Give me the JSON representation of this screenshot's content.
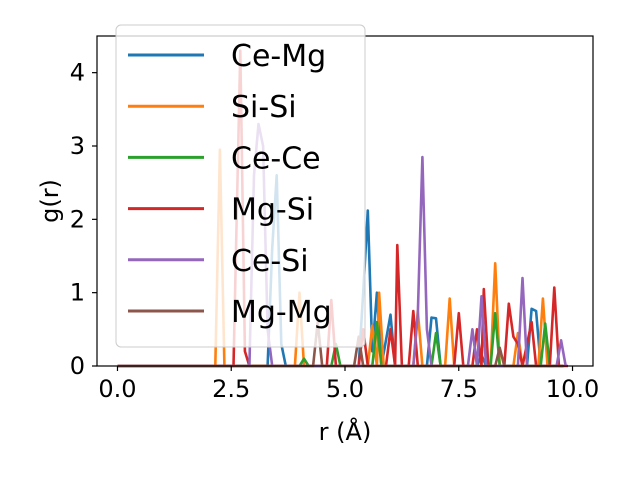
{
  "chart_data": {
    "type": "line",
    "xlabel": "r (Å)",
    "ylabel": "g(r)",
    "xlim": [
      -0.45,
      10.45
    ],
    "ylim": [
      0,
      4.5
    ],
    "xticks": [
      0.0,
      2.5,
      5.0,
      7.5,
      10.0
    ],
    "xtick_labels": [
      "0.0",
      "2.5",
      "5.0",
      "7.5",
      "10.0"
    ],
    "yticks": [
      0,
      1,
      2,
      3,
      4
    ],
    "ytick_labels": [
      "0",
      "1",
      "2",
      "3",
      "4"
    ],
    "grid": false,
    "legend_position": "upper-left",
    "series": [
      {
        "name": "Ce-Mg",
        "color": "#1f77b4",
        "points": [
          [
            0,
            0
          ],
          [
            3.3,
            0
          ],
          [
            3.4,
            1.6
          ],
          [
            3.5,
            2.6
          ],
          [
            3.6,
            0.3
          ],
          [
            3.7,
            0
          ],
          [
            5.3,
            0
          ],
          [
            5.4,
            1.0
          ],
          [
            5.5,
            2.12
          ],
          [
            5.6,
            0.2
          ],
          [
            5.7,
            1.0
          ],
          [
            5.8,
            0
          ],
          [
            6.0,
            0.7
          ],
          [
            6.1,
            0
          ],
          [
            6.8,
            0
          ],
          [
            6.9,
            0.66
          ],
          [
            7.0,
            0.65
          ],
          [
            7.1,
            0
          ],
          [
            7.9,
            0
          ],
          [
            8.0,
            0.15
          ],
          [
            8.1,
            0
          ],
          [
            9.0,
            0
          ],
          [
            9.1,
            0.78
          ],
          [
            9.2,
            0.75
          ],
          [
            9.3,
            0
          ],
          [
            9.6,
            0
          ]
        ]
      },
      {
        "name": "Si-Si",
        "color": "#ff7f0e",
        "points": [
          [
            0,
            0
          ],
          [
            2.15,
            0
          ],
          [
            2.25,
            2.95
          ],
          [
            2.35,
            0
          ],
          [
            3.9,
            0
          ],
          [
            4.0,
            1.0
          ],
          [
            4.1,
            0
          ],
          [
            5.5,
            0
          ],
          [
            5.6,
            0.55
          ],
          [
            5.7,
            0
          ],
          [
            5.75,
            1.0
          ],
          [
            5.85,
            0
          ],
          [
            6.5,
            0
          ],
          [
            6.6,
            0.75
          ],
          [
            6.7,
            0
          ],
          [
            7.2,
            0
          ],
          [
            7.3,
            0.92
          ],
          [
            7.4,
            0
          ],
          [
            8.2,
            0
          ],
          [
            8.3,
            1.4
          ],
          [
            8.4,
            0
          ],
          [
            8.7,
            0
          ],
          [
            8.8,
            0.45
          ],
          [
            8.9,
            0
          ],
          [
            9.25,
            0
          ],
          [
            9.35,
            0.92
          ],
          [
            9.45,
            0
          ],
          [
            9.8,
            0
          ]
        ]
      },
      {
        "name": "Ce-Ce",
        "color": "#2ca02c",
        "points": [
          [
            0,
            0
          ],
          [
            4.0,
            0
          ],
          [
            4.1,
            0.1
          ],
          [
            4.2,
            0
          ],
          [
            4.7,
            0
          ],
          [
            4.8,
            0.3
          ],
          [
            4.9,
            0
          ],
          [
            5.6,
            0
          ],
          [
            5.7,
            0.6
          ],
          [
            5.8,
            0
          ],
          [
            6.9,
            0
          ],
          [
            7.0,
            0.45
          ],
          [
            7.1,
            0
          ],
          [
            8.2,
            0
          ],
          [
            8.3,
            0.72
          ],
          [
            8.4,
            0
          ],
          [
            9.3,
            0
          ],
          [
            9.4,
            0.58
          ],
          [
            9.5,
            0
          ],
          [
            9.8,
            0
          ]
        ]
      },
      {
        "name": "Mg-Si",
        "color": "#d62728",
        "points": [
          [
            0,
            0
          ],
          [
            2.55,
            0
          ],
          [
            2.7,
            4.3
          ],
          [
            2.8,
            0.2
          ],
          [
            2.9,
            0
          ],
          [
            4.6,
            0
          ],
          [
            4.7,
            0.9
          ],
          [
            4.8,
            0
          ],
          [
            5.3,
            0
          ],
          [
            5.4,
            0.5
          ],
          [
            5.5,
            0
          ],
          [
            5.9,
            0
          ],
          [
            6.0,
            0.5
          ],
          [
            6.1,
            0
          ],
          [
            6.15,
            1.65
          ],
          [
            6.25,
            0
          ],
          [
            6.4,
            0
          ],
          [
            6.5,
            0.75
          ],
          [
            6.6,
            0
          ],
          [
            7.4,
            0
          ],
          [
            7.5,
            0.72
          ],
          [
            7.6,
            0
          ],
          [
            7.8,
            0
          ],
          [
            7.9,
            0.5
          ],
          [
            8.0,
            0
          ],
          [
            8.05,
            1.05
          ],
          [
            8.15,
            0
          ],
          [
            8.5,
            0
          ],
          [
            8.6,
            0.85
          ],
          [
            8.7,
            0.4
          ],
          [
            8.8,
            0.3
          ],
          [
            8.9,
            0
          ],
          [
            9.1,
            0.6
          ],
          [
            9.2,
            0
          ],
          [
            9.5,
            0
          ],
          [
            9.6,
            1.07
          ],
          [
            9.7,
            0
          ],
          [
            9.9,
            0
          ]
        ]
      },
      {
        "name": "Ce-Si",
        "color": "#9467bd",
        "points": [
          [
            0,
            0
          ],
          [
            2.9,
            0
          ],
          [
            3.0,
            2.6
          ],
          [
            3.1,
            3.3
          ],
          [
            3.2,
            3.0
          ],
          [
            3.3,
            0.5
          ],
          [
            3.4,
            0
          ],
          [
            6.5,
            0
          ],
          [
            6.6,
            0.7
          ],
          [
            6.7,
            2.85
          ],
          [
            6.8,
            0.5
          ],
          [
            6.9,
            0
          ],
          [
            7.7,
            0
          ],
          [
            7.8,
            0.5
          ],
          [
            7.9,
            0
          ],
          [
            8.0,
            0.95
          ],
          [
            8.1,
            0
          ],
          [
            8.8,
            0
          ],
          [
            8.9,
            1.2
          ],
          [
            9.0,
            0
          ],
          [
            9.65,
            0
          ],
          [
            9.75,
            0.35
          ],
          [
            9.85,
            0
          ]
        ]
      },
      {
        "name": "Mg-Mg",
        "color": "#8c564b",
        "points": [
          [
            0,
            0
          ],
          [
            4.3,
            0
          ],
          [
            4.4,
            0.6
          ],
          [
            4.5,
            0
          ],
          [
            5.2,
            0
          ],
          [
            5.3,
            0.4
          ],
          [
            5.4,
            0
          ],
          [
            8.3,
            0
          ],
          [
            8.4,
            0.25
          ],
          [
            8.5,
            0
          ],
          [
            9.8,
            0
          ]
        ]
      }
    ]
  }
}
